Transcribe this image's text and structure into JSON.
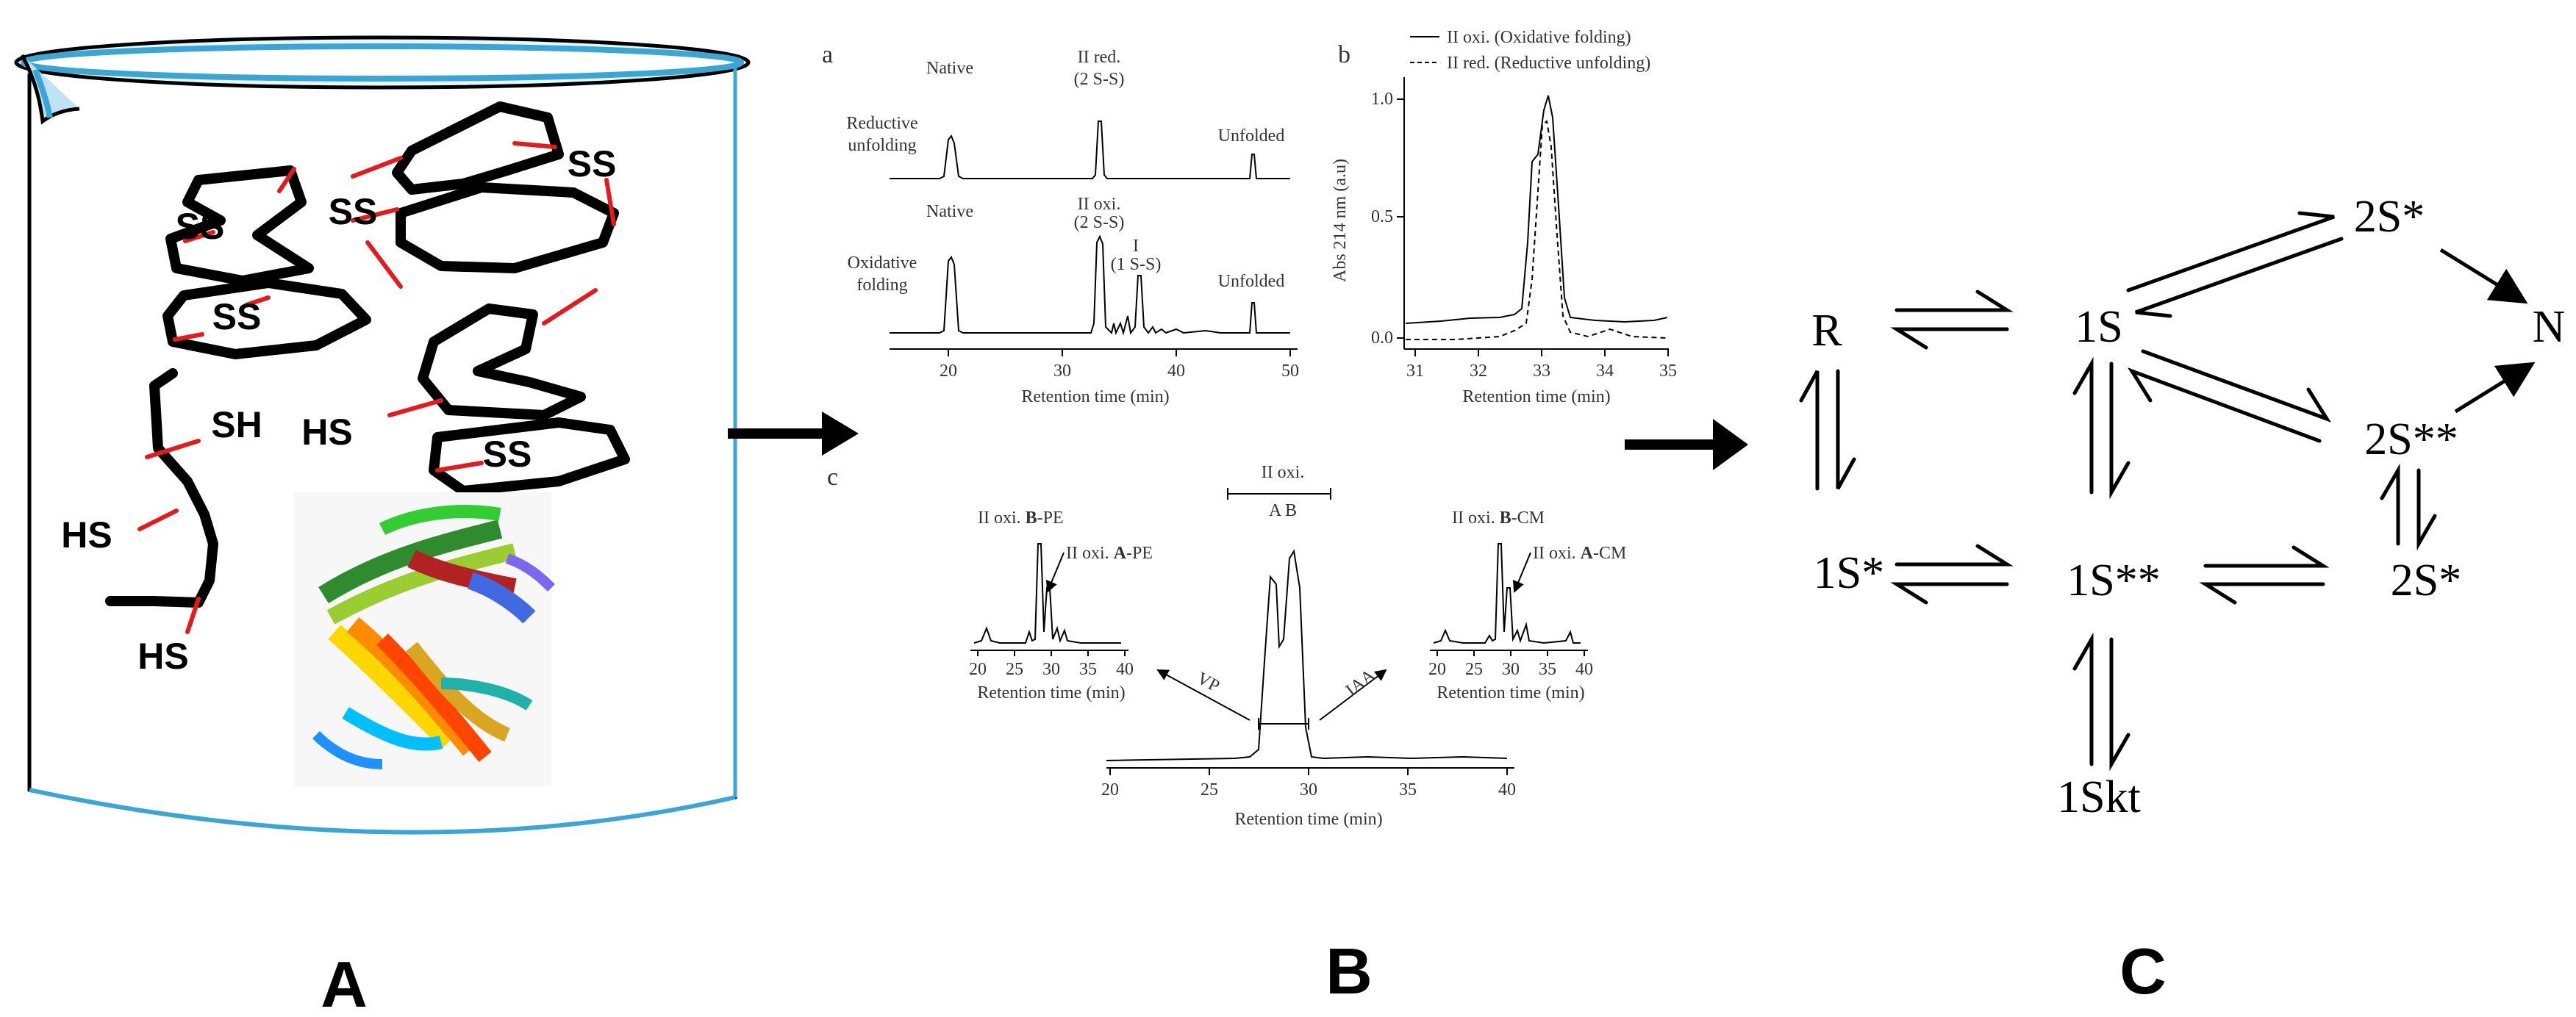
{
  "panel_labels": {
    "a": "A",
    "b": "B",
    "c": "C"
  },
  "beaker": {
    "ss_labels": [
      "SS",
      "SS",
      "SS",
      "SS",
      "SS"
    ],
    "sh_label": "SH",
    "hs_labels": [
      "HS",
      "HS",
      "HS"
    ],
    "beaker_color": "#3aa6d6",
    "bond_color": "#e41a1c"
  },
  "chromatograms": {
    "a": {
      "letter": "a",
      "row1_label_1": "Reductive",
      "row1_label_2": "unfolding",
      "row1_peaks": [
        "Native",
        "II red.",
        "(2 S-S)",
        "Unfolded"
      ],
      "row2_label_1": "Oxidative",
      "row2_label_2": "folding",
      "row2_peaks": [
        "Native",
        "II oxi.",
        "(2 S-S)",
        "I",
        "(1 S-S)",
        "Unfolded"
      ],
      "x_ticks": [
        "20",
        "30",
        "40",
        "50"
      ],
      "x_label": "Retention time (min)"
    },
    "b": {
      "letter": "b",
      "legend_solid": "II oxi.  (Oxidative folding)",
      "legend_dashed": "II red. (Reductive unfolding)",
      "y_label": "Abs 214 nm (a.u)",
      "y_ticks": [
        "0.0",
        "0.5",
        "1.0"
      ],
      "x_ticks": [
        "31",
        "32",
        "33",
        "34",
        "35"
      ],
      "x_label": "Retention time (min)"
    },
    "c": {
      "letter": "c",
      "center_label": "II oxi.",
      "center_peaks": "A B",
      "left_title_prefix": "II oxi. ",
      "left_title_bold": "B",
      "left_title_suffix": "-PE",
      "left_sub_prefix": "II oxi. ",
      "left_sub_bold": "A",
      "left_sub_suffix": "-PE",
      "right_title_prefix": "II oxi. ",
      "right_title_bold": "B",
      "right_title_suffix": "-CM",
      "right_sub_prefix": "II oxi. ",
      "right_sub_bold": "A",
      "right_sub_suffix": "-CM",
      "vp_label": "VP",
      "iaa_label": "IAA",
      "small_x_ticks": [
        "20",
        "25",
        "30",
        "35",
        "40"
      ],
      "main_x_ticks": [
        "20",
        "25",
        "30",
        "35",
        "40"
      ],
      "x_label": "Retention time (min)"
    }
  },
  "scheme": {
    "nodes": {
      "R": "R",
      "1S": "1S",
      "2S_top": "2S*",
      "N": "N",
      "2S_mid": "2S**",
      "1S_star": "1S*",
      "1S_2star": "1S**",
      "2S_low": "2S*",
      "1Skt": "1Skt"
    }
  }
}
